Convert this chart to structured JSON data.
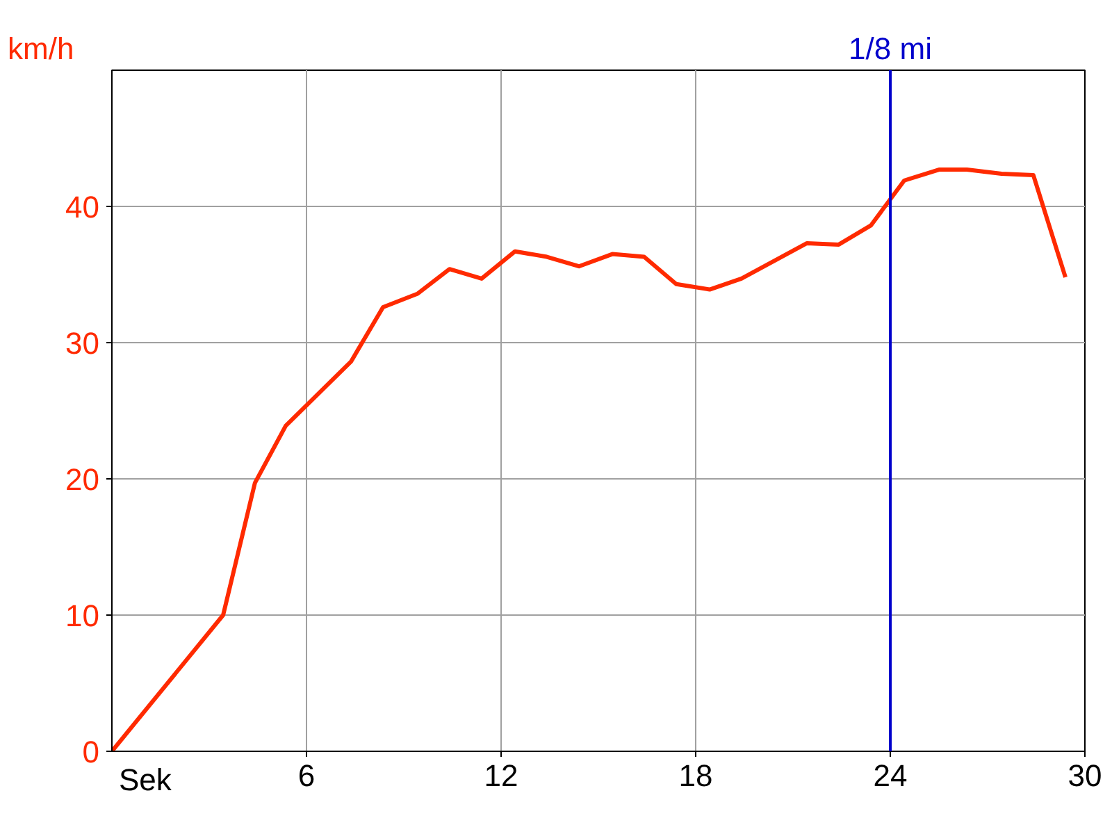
{
  "chart_data": {
    "type": "line",
    "xlabel": "Sek",
    "ylabel": "km/h",
    "x": [
      0,
      3.43,
      4.41,
      5.36,
      7.37,
      8.36,
      9.43,
      10.41,
      11.4,
      12.43,
      13.41,
      14.4,
      15.43,
      16.41,
      17.4,
      18.43,
      19.41,
      21.43,
      22.41,
      23.4,
      24.43,
      25.5,
      26.36,
      27.43,
      28.41,
      29.4
    ],
    "series": [
      {
        "color": "#ff2a00",
        "values": [
          0,
          10,
          19.7,
          23.9,
          28.6,
          32.6,
          33.6,
          35.4,
          34.7,
          36.7,
          36.3,
          35.6,
          36.5,
          36.3,
          34.3,
          33.9,
          34.7,
          37.3,
          37.2,
          38.6,
          41.9,
          42.7,
          42.7,
          42.4,
          42.3,
          34.8
        ]
      }
    ],
    "xlim": [
      0,
      30
    ],
    "xticks": [
      6,
      12,
      18,
      24,
      30
    ],
    "ylim": [
      0,
      50
    ],
    "yticks": [
      0,
      10,
      20,
      30,
      40
    ],
    "ref_lines": [
      {
        "axis": "x",
        "value": 24,
        "label": "1/8 mi",
        "color": "#0000cc"
      }
    ],
    "grid": true,
    "marker": "none",
    "line_style": "solid"
  }
}
